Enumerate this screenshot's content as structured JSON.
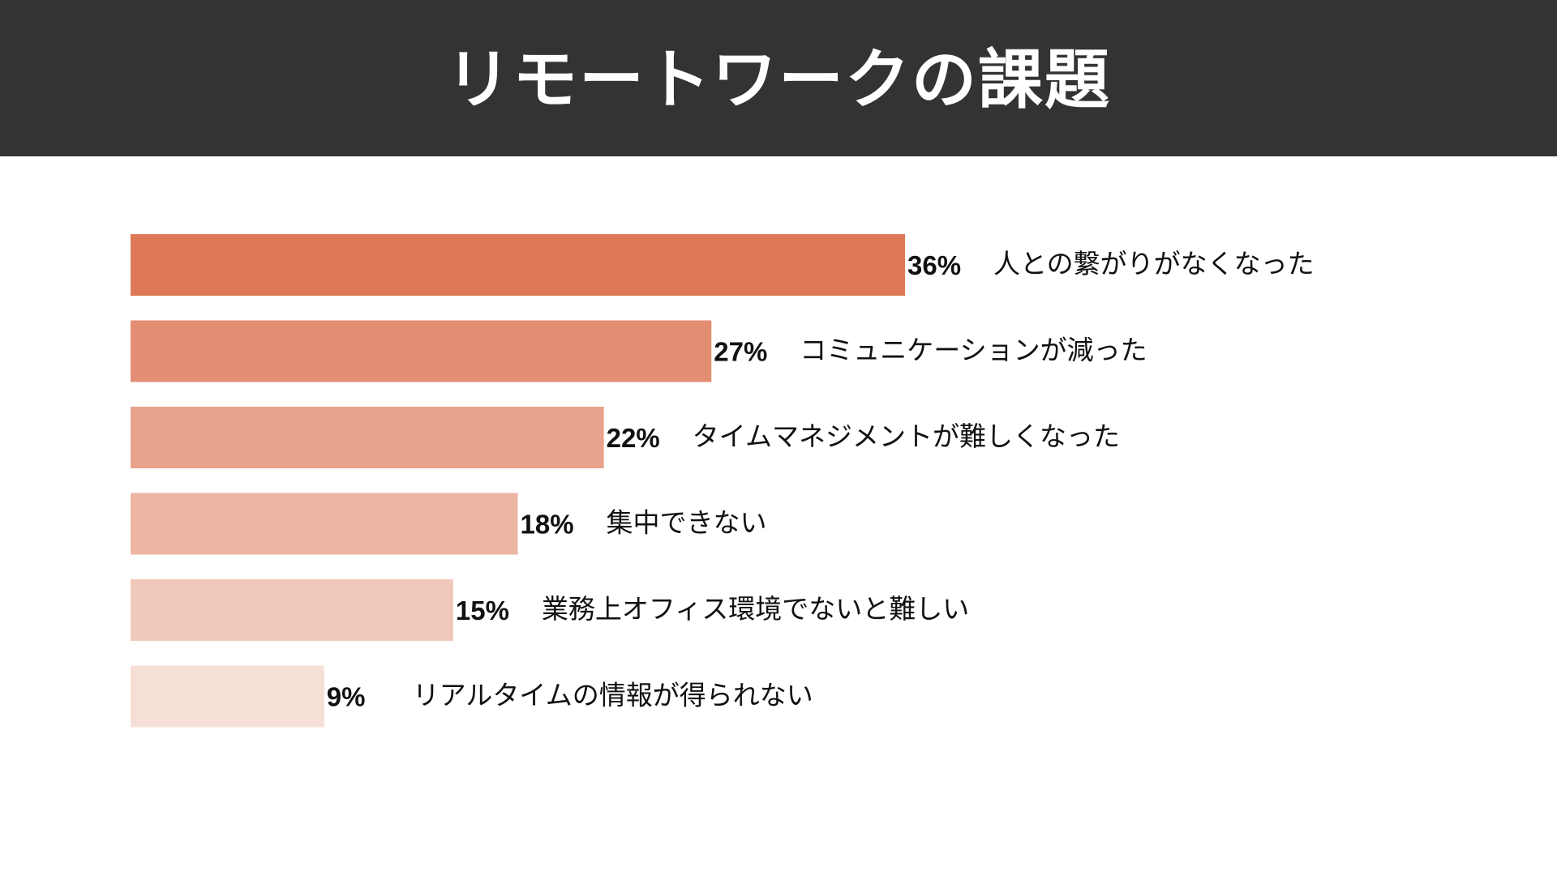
{
  "title": "リモートワークの課題",
  "colors": {
    "header_bg": "#333333",
    "title_text": "#ffffff",
    "text": "#111111"
  },
  "chart_data": {
    "type": "bar",
    "orientation": "horizontal",
    "unit": "%",
    "categories": [
      "人との繋がりがなくなった",
      "コミュニケーションが減った",
      "タイムマネジメントが難しくなった",
      "集中できない",
      "業務上オフィス環境でないと難しい",
      "リアルタイムの情報が得られない"
    ],
    "values": [
      36,
      27,
      22,
      18,
      15,
      9
    ],
    "value_labels": [
      "36%",
      "27%",
      "22%",
      "18%",
      "15%",
      "9%"
    ],
    "bar_colors": [
      "#df7856",
      "#e38d72",
      "#e8a38c",
      "#ecb5a2",
      "#f1c9bb",
      "#f6dfd6"
    ],
    "xlim": [
      0,
      40
    ],
    "grid": false,
    "legend": "none"
  }
}
